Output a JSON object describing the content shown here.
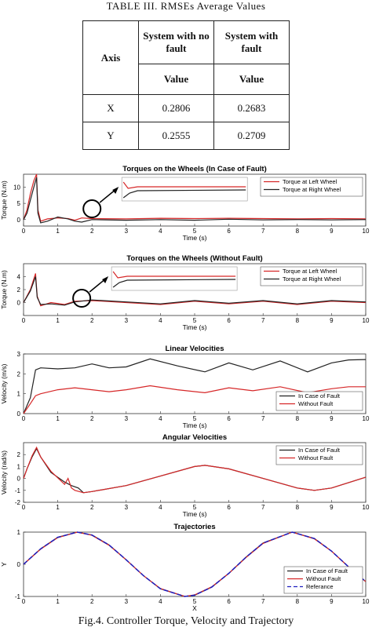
{
  "table": {
    "caption": "TABLE III.        RMSEs Average Values",
    "headers": {
      "axis": "Axis",
      "col1": "System with no fault",
      "col2": "System with fault",
      "value1": "Value",
      "value2": "Value"
    },
    "rows": [
      {
        "axis": "X",
        "no_fault": "0.2806",
        "fault": "0.2683"
      },
      {
        "axis": "Y",
        "no_fault": "0.2555",
        "fault": "0.2709"
      }
    ]
  },
  "figure_caption": "Fig.4. Controller Torque, Velocity and Trajectory",
  "colors": {
    "fault": "#d62728",
    "nofault": "#222222",
    "reference": "#1f1fbf"
  },
  "chart_data": [
    {
      "type": "line",
      "title": "Torques on the Wheels (In Case of Fault)",
      "xlabel": "Time (s)",
      "ylabel": "Torque (N.m)",
      "xlim": [
        0,
        10
      ],
      "ylim": [
        -2,
        14
      ],
      "yticks": [
        0,
        5,
        10
      ],
      "legend_position": "top-right",
      "series": [
        {
          "name": "Torque at Left Wheel",
          "color": "#d62728",
          "x": [
            0,
            0.1,
            0.2,
            0.3,
            0.38,
            0.42,
            0.5,
            0.7,
            1,
            1.3,
            1.5,
            1.7,
            2,
            3,
            4,
            5,
            6,
            7,
            8,
            9,
            10
          ],
          "y": [
            0,
            3,
            8,
            12,
            14,
            3,
            -0.5,
            0.2,
            0.5,
            0.3,
            -0.2,
            0.5,
            0.3,
            0.2,
            0.4,
            0.3,
            0.4,
            0.3,
            0.2,
            0.3,
            0.2
          ]
        },
        {
          "name": "Torque at Right Wheel",
          "color": "#222222",
          "x": [
            0,
            0.1,
            0.2,
            0.3,
            0.38,
            0.42,
            0.5,
            0.7,
            1,
            1.3,
            1.5,
            1.7,
            2,
            3,
            4,
            5,
            6,
            7,
            8,
            9,
            10
          ],
          "y": [
            0,
            2,
            6,
            10,
            13,
            2,
            -1,
            -0.5,
            0.8,
            0.2,
            -0.5,
            -0.8,
            0,
            -0.2,
            0,
            -0.2,
            0.1,
            -0.1,
            0,
            -0.1,
            0
          ]
        }
      ]
    },
    {
      "type": "line",
      "title": "Torques on the Wheels (Without Fault)",
      "xlabel": "Time (s)",
      "ylabel": "Torque (N.m)",
      "xlim": [
        0,
        10
      ],
      "ylim": [
        -2,
        6
      ],
      "yticks": [
        0,
        2,
        4
      ],
      "legend_position": "top-right",
      "series": [
        {
          "name": "Torque at Left Wheel",
          "color": "#d62728",
          "x": [
            0,
            0.2,
            0.35,
            0.4,
            0.5,
            0.8,
            1.2,
            1.5,
            2,
            3,
            4,
            5,
            6,
            7,
            8,
            9,
            10
          ],
          "y": [
            0,
            2,
            4.5,
            1,
            -0.5,
            0,
            -0.3,
            0.2,
            0.3,
            0,
            -0.3,
            0.2,
            -0.2,
            0.2,
            -0.3,
            0.2,
            0
          ]
        },
        {
          "name": "Torque at Right Wheel",
          "color": "#222222",
          "x": [
            0,
            0.2,
            0.35,
            0.4,
            0.5,
            0.8,
            1.2,
            1.5,
            2,
            3,
            4,
            5,
            6,
            7,
            8,
            9,
            10
          ],
          "y": [
            0,
            1.8,
            4,
            0.8,
            -0.3,
            -0.2,
            -0.4,
            0.1,
            0.4,
            0.1,
            -0.2,
            0.3,
            -0.1,
            0.3,
            -0.2,
            0.3,
            0.1
          ]
        }
      ]
    },
    {
      "type": "line",
      "title": "Linear Velocities",
      "xlabel": "Time (s)",
      "ylabel": "Velocity (m/s)",
      "xlim": [
        0,
        10
      ],
      "ylim": [
        0,
        3
      ],
      "yticks": [
        0,
        1,
        2,
        3
      ],
      "legend_position": "bottom-right",
      "series": [
        {
          "name": "In Case of Fault",
          "color": "#222222",
          "x": [
            0,
            0.2,
            0.35,
            0.5,
            1,
            1.5,
            2,
            2.5,
            3,
            3.7,
            4.5,
            5.3,
            6,
            6.7,
            7.5,
            8.3,
            9,
            9.5,
            10
          ],
          "y": [
            0,
            0.8,
            2.2,
            2.3,
            2.25,
            2.3,
            2.5,
            2.3,
            2.35,
            2.75,
            2.4,
            2.1,
            2.55,
            2.2,
            2.65,
            2.1,
            2.55,
            2.7,
            2.72
          ]
        },
        {
          "name": "Without Fault",
          "color": "#d62728",
          "x": [
            0,
            0.2,
            0.35,
            0.5,
            1,
            1.5,
            2,
            2.5,
            3,
            3.7,
            4.5,
            5.3,
            6,
            6.7,
            7.5,
            8.3,
            9,
            9.5,
            10
          ],
          "y": [
            0,
            0.5,
            0.9,
            1.0,
            1.2,
            1.3,
            1.2,
            1.1,
            1.2,
            1.4,
            1.2,
            1.05,
            1.3,
            1.15,
            1.35,
            1.05,
            1.25,
            1.35,
            1.35
          ]
        }
      ]
    },
    {
      "type": "line",
      "title": "Angular Velocities",
      "xlabel": "Time (s)",
      "ylabel": "Velocity (rad/s)",
      "xlim": [
        0,
        10
      ],
      "ylim": [
        -2,
        3
      ],
      "yticks": [
        -2,
        -1,
        0,
        1,
        2
      ],
      "legend_position": "top-right",
      "series": [
        {
          "name": "In Case of Fault",
          "color": "#222222",
          "x": [
            0,
            0.1,
            0.25,
            0.38,
            0.5,
            0.8,
            1.2,
            1.4,
            1.6,
            1.75,
            2,
            3,
            4,
            5,
            5.3,
            6,
            7,
            8,
            8.5,
            9,
            10
          ],
          "y": [
            0,
            0.8,
            1.8,
            2.5,
            1.8,
            0.5,
            -0.3,
            -0.6,
            -0.8,
            -1.2,
            -1.1,
            -0.6,
            0.2,
            1.0,
            1.1,
            0.8,
            0,
            -0.8,
            -1,
            -0.8,
            0.1
          ]
        },
        {
          "name": "Without Fault",
          "color": "#d62728",
          "x": [
            0,
            0.1,
            0.25,
            0.38,
            0.5,
            0.8,
            1.2,
            1.3,
            1.4,
            1.5,
            1.75,
            2,
            3,
            4,
            5,
            5.3,
            6,
            7,
            8,
            8.5,
            9,
            10
          ],
          "y": [
            0,
            0.8,
            1.9,
            2.6,
            1.8,
            0.6,
            -0.5,
            0,
            -0.8,
            -1,
            -1.2,
            -1.1,
            -0.6,
            0.2,
            1.0,
            1.1,
            0.8,
            0,
            -0.8,
            -1,
            -0.8,
            0.1
          ]
        }
      ]
    },
    {
      "type": "line",
      "title": "Trajectories",
      "xlabel": "X",
      "ylabel": "Y",
      "xlim": [
        0,
        10
      ],
      "ylim": [
        -1,
        1
      ],
      "yticks": [
        -1,
        0,
        1
      ],
      "legend_position": "bottom-right",
      "series": [
        {
          "name": "In Case of Fault",
          "color": "#222222",
          "x": [
            0,
            0.5,
            1,
            1.57,
            2,
            2.5,
            3,
            3.5,
            4,
            4.71,
            5,
            5.5,
            6,
            6.5,
            7,
            7.85,
            8.5,
            9,
            9.5,
            10
          ],
          "y": [
            0,
            0.48,
            0.84,
            1,
            0.91,
            0.6,
            0.14,
            -0.35,
            -0.76,
            -1,
            -0.96,
            -0.71,
            -0.28,
            0.22,
            0.66,
            1,
            0.8,
            0.41,
            -0.08,
            -0.54
          ]
        },
        {
          "name": "Without Fault",
          "color": "#d62728",
          "x": [
            0,
            0.5,
            1,
            1.57,
            2,
            2.5,
            3,
            3.5,
            4,
            4.71,
            5,
            5.5,
            6,
            6.5,
            7,
            7.85,
            8.5,
            9,
            9.5,
            10
          ],
          "y": [
            0,
            0.47,
            0.83,
            1,
            0.9,
            0.59,
            0.14,
            -0.35,
            -0.75,
            -1,
            -0.95,
            -0.7,
            -0.28,
            0.21,
            0.65,
            1,
            0.79,
            0.41,
            -0.08,
            -0.54
          ]
        },
        {
          "name": "Referance",
          "color": "#1f1fbf",
          "dashed": true,
          "x": [
            0,
            0.5,
            1,
            1.57,
            2,
            2.5,
            3,
            3.5,
            4,
            4.71,
            5,
            5.5,
            6,
            6.5,
            7,
            7.85,
            8.5,
            9,
            9.5,
            10
          ],
          "y": [
            0,
            0.48,
            0.84,
            1,
            0.91,
            0.6,
            0.14,
            -0.35,
            -0.76,
            -1,
            -0.96,
            -0.71,
            -0.28,
            0.22,
            0.66,
            1,
            0.8,
            0.41,
            -0.08,
            -0.54
          ]
        }
      ]
    }
  ]
}
